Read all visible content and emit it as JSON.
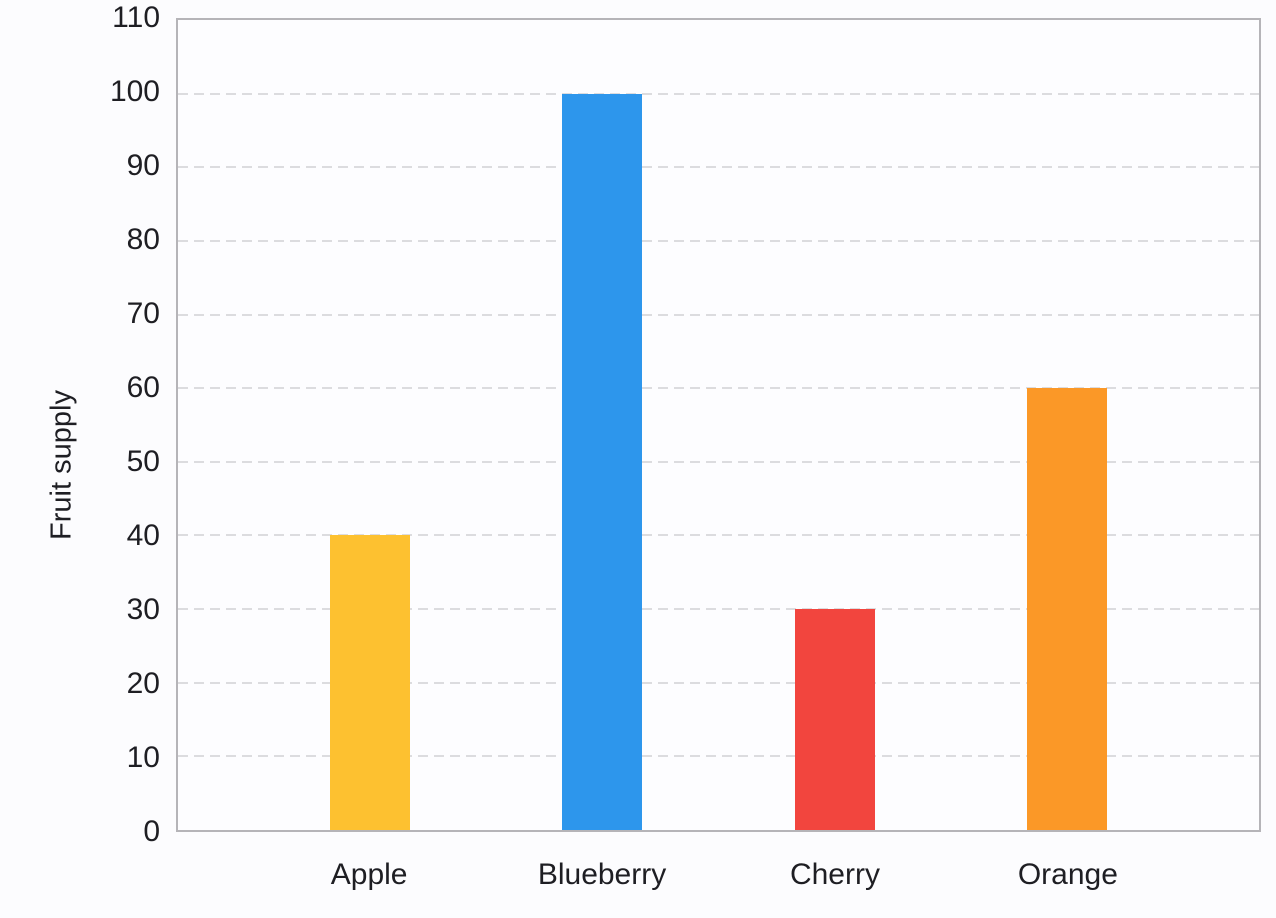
{
  "chart_data": {
    "type": "bar",
    "title": "",
    "categories": [
      "Apple",
      "Blueberry",
      "Cherry",
      "Orange"
    ],
    "values": [
      40,
      100,
      30,
      60
    ],
    "bar_colors": [
      "#fdc130",
      "#2d96ec",
      "#f2453e",
      "#fb9827"
    ],
    "xlabel": "",
    "ylabel": "Fruit supply",
    "ylim": [
      0,
      110
    ],
    "yticks": [
      0,
      10,
      20,
      30,
      40,
      50,
      60,
      70,
      80,
      90,
      100,
      110
    ],
    "ytick_step": 10,
    "grid": "horizontal-dashed",
    "legend": "none"
  },
  "colors": {
    "page_background": "#fcfcfe",
    "plot_background": "#fdfdff",
    "axis_border": "#b5b4b8",
    "gridline": "#dcdcdf",
    "text": "#1e1e23"
  }
}
